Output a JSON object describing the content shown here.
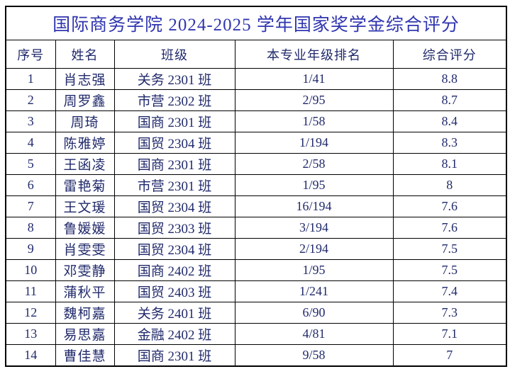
{
  "document": {
    "title": "国际商务学院 2024-2025 学年国家奖学金综合评分"
  },
  "table": {
    "headers": [
      "序号",
      "姓名",
      "班级",
      "本专业年级排名",
      "综合评分"
    ],
    "rows": [
      {
        "no": "1",
        "name": "肖志强",
        "class": "关务 2301 班",
        "rank": "1/41",
        "score": "8.8"
      },
      {
        "no": "2",
        "name": "周罗鑫",
        "class": "市营 2302 班",
        "rank": "2/95",
        "score": "8.7"
      },
      {
        "no": "3",
        "name": "周琦",
        "class": "国商 2301 班",
        "rank": "1/58",
        "score": "8.4"
      },
      {
        "no": "4",
        "name": "陈雅婷",
        "class": "国贸 2304 班",
        "rank": "1/194",
        "score": "8.3"
      },
      {
        "no": "5",
        "name": "王函凌",
        "class": "国商 2301 班",
        "rank": "2/58",
        "score": "8.1"
      },
      {
        "no": "6",
        "name": "雷艳菊",
        "class": "市营 2301 班",
        "rank": "1/95",
        "score": "8"
      },
      {
        "no": "7",
        "name": "王文瑗",
        "class": "国贸 2304 班",
        "rank": "16/194",
        "score": "7.6"
      },
      {
        "no": "8",
        "name": "鲁媛媛",
        "class": "国贸 2303 班",
        "rank": "3/194",
        "score": "7.6"
      },
      {
        "no": "9",
        "name": "肖雯雯",
        "class": "国贸 2304 班",
        "rank": "2/194",
        "score": "7.5"
      },
      {
        "no": "10",
        "name": "邓雯静",
        "class": "国商 2402 班",
        "rank": "1/95",
        "score": "7.5"
      },
      {
        "no": "11",
        "name": "蒲秋平",
        "class": "国贸 2403 班",
        "rank": "1/241",
        "score": "7.4"
      },
      {
        "no": "12",
        "name": "魏柯嘉",
        "class": "关务 2401 班",
        "rank": "6/90",
        "score": "7.3"
      },
      {
        "no": "13",
        "name": "易思嘉",
        "class": "金融 2402 班",
        "rank": "4/81",
        "score": "7.1"
      },
      {
        "no": "14",
        "name": "曹佳慧",
        "class": "国商 2301 班",
        "rank": "9/58",
        "score": "7"
      }
    ]
  },
  "colors": {
    "title_text": "#3035b0",
    "body_text": "#212a6b",
    "border": "#000000",
    "background": "#ffffff"
  }
}
